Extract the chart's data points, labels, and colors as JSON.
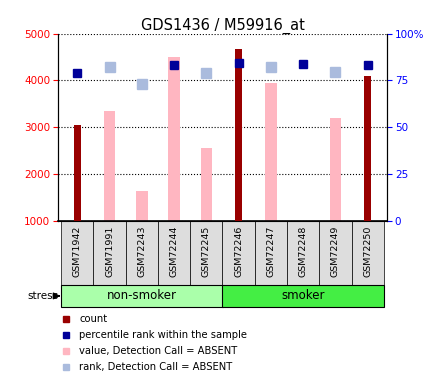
{
  "title": "GDS1436 / M59916_at",
  "samples": [
    "GSM71942",
    "GSM71991",
    "GSM72243",
    "GSM72244",
    "GSM72245",
    "GSM72246",
    "GSM72247",
    "GSM72248",
    "GSM72249",
    "GSM72250"
  ],
  "count_values": [
    3050,
    null,
    null,
    null,
    null,
    4680,
    null,
    null,
    null,
    4100
  ],
  "pink_bar_values": [
    null,
    3340,
    1640,
    4500,
    2560,
    null,
    3940,
    null,
    3200,
    null
  ],
  "blue_square_values": [
    4170,
    null,
    null,
    4330,
    null,
    4380,
    null,
    4360,
    null,
    4330
  ],
  "light_blue_square_values": [
    null,
    4290,
    3930,
    null,
    4170,
    null,
    4290,
    null,
    4180,
    null
  ],
  "ylim_left": [
    1000,
    5000
  ],
  "ylim_right": [
    0,
    100
  ],
  "yticks_left": [
    1000,
    2000,
    3000,
    4000,
    5000
  ],
  "yticks_right": [
    0,
    25,
    50,
    75,
    100
  ],
  "ytick_labels_right": [
    "0",
    "25",
    "50",
    "75",
    "100%"
  ],
  "bar_color_dark_red": "#990000",
  "bar_color_pink": "#ffb6c1",
  "bar_color_blue": "#000099",
  "bar_color_light_blue": "#aabbdd",
  "group_ns_color": "#aaffaa",
  "group_s_color": "#44ee44",
  "sample_bg_color": "#dddddd",
  "legend_items": [
    {
      "label": "count",
      "color": "#990000"
    },
    {
      "label": "percentile rank within the sample",
      "color": "#000099"
    },
    {
      "label": "value, Detection Call = ABSENT",
      "color": "#ffb6c1"
    },
    {
      "label": "rank, Detection Call = ABSENT",
      "color": "#aabbdd"
    }
  ]
}
